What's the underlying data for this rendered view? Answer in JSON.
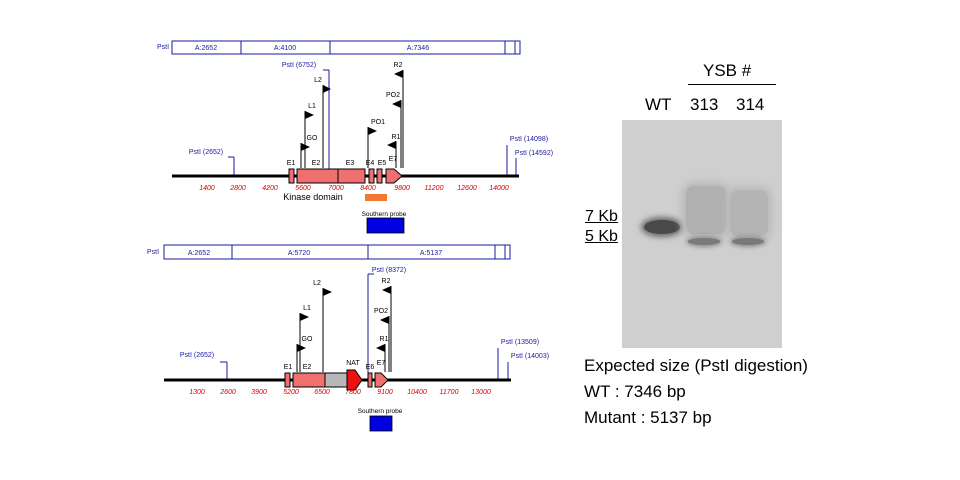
{
  "wt_map": {
    "pst_label": "PstI",
    "fragments": [
      "A:2652",
      "A:4100",
      "A:7346"
    ],
    "sites_above": [
      "PstI (6752)"
    ],
    "sites": [
      "PstI (2652)",
      "PstI (14098)",
      "PstI (14592)"
    ],
    "ticks": [
      "1400",
      "2800",
      "4200",
      "5600",
      "7000",
      "8400",
      "9800",
      "11200",
      "12600",
      "14000"
    ],
    "primers": [
      "L2",
      "L1",
      "GO",
      "R2",
      "PO2",
      "PO1",
      "R1"
    ],
    "exons": [
      "E1",
      "E2",
      "E3",
      "E4",
      "E5",
      "E7"
    ],
    "domain_label": "Kinase domain",
    "domain_color": "#f07a30",
    "probe_label": "Southern probe",
    "probe_color": "#0000e0"
  },
  "mut_map": {
    "pst_label": "PstI",
    "fragments": [
      "A:2652",
      "A:5720",
      "A:5137"
    ],
    "sites_above": [
      "PstI (8372)"
    ],
    "sites": [
      "PstI (2652)",
      "PstI (13509)",
      "PstI (14003)"
    ],
    "ticks": [
      "1300",
      "2600",
      "3900",
      "5200",
      "6500",
      "7800",
      "9100",
      "10400",
      "11700",
      "13000"
    ],
    "primers": [
      "L2",
      "L1",
      "GO",
      "R2",
      "PO2",
      "R1"
    ],
    "exons": [
      "E1",
      "E2",
      "E6",
      "E7"
    ],
    "nat_label": "NAT",
    "probe_label": "Southern probe",
    "probe_color": "#0000e0"
  },
  "colors": {
    "exon_fill": "#f07070",
    "nat_fill": "#b8b8b8",
    "arrow_red": "#ee1111",
    "tick_red": "#d40000",
    "frag_blue": "#1a1aa0"
  },
  "blot": {
    "group_label": "YSB #",
    "lanes": [
      "WT",
      "313",
      "314"
    ],
    "markers": [
      "7 Kb",
      "5 Kb"
    ],
    "expected_title": "Expected size (PstI digestion)",
    "wt_line": "WT : 7346 bp",
    "mutant_line": "Mutant : 5137  bp"
  }
}
